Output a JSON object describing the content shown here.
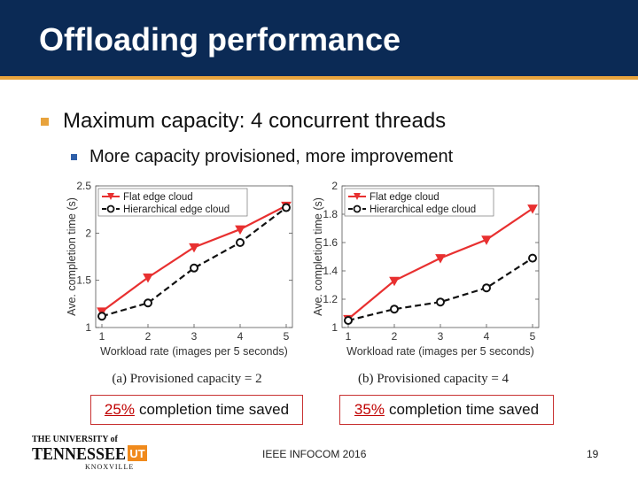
{
  "slide": {
    "title": "Offloading performance",
    "bullet_level1": "Maximum capacity: 4 concurrent threads",
    "bullet_level2": "More capacity provisioned, more improvement",
    "callout_a_pct": "25%",
    "callout_a_text": "completion time saved",
    "callout_b_pct": "35%",
    "callout_b_text": "completion time saved",
    "footer": "IEEE INFOCOM 2016",
    "page_number": "19",
    "logo_line1": "THE UNIVERSITY of",
    "logo_line2": "TENNESSEE",
    "logo_mark": "UT",
    "logo_line3": "KNOXVILLE"
  },
  "colors": {
    "title_bar": "#0b2a55",
    "accent": "#e8a33c",
    "flat_series": "#e83030",
    "hier_series": "#111111",
    "logo_orange": "#f08a1c"
  },
  "chart_data": [
    {
      "type": "line",
      "subtitle": "(a) Provisioned capacity = 2",
      "xlabel": "Workload rate (images per 5 seconds)",
      "ylabel": "Ave. completion time (s)",
      "x": [
        1,
        2,
        3,
        4,
        5
      ],
      "xticks": [
        "1",
        "2",
        "3",
        "4",
        "5"
      ],
      "ylim": [
        1,
        2.5
      ],
      "yticks": [
        "1",
        "1.5",
        "2",
        "2.5"
      ],
      "yticks_values": [
        1,
        1.5,
        2,
        2.5
      ],
      "grid": false,
      "legend": "top-left",
      "series": [
        {
          "name": "Flat edge cloud",
          "values": [
            1.17,
            1.53,
            1.85,
            2.04,
            2.29
          ]
        },
        {
          "name": "Hierarchical edge cloud",
          "values": [
            1.12,
            1.26,
            1.63,
            1.9,
            2.27
          ]
        }
      ]
    },
    {
      "type": "line",
      "subtitle": "(b) Provisioned capacity = 4",
      "xlabel": "Workload rate (images per 5 seconds)",
      "ylabel": "Ave. completion time (s)",
      "x": [
        1,
        2,
        3,
        4,
        5
      ],
      "xticks": [
        "1",
        "2",
        "3",
        "4",
        "5"
      ],
      "ylim": [
        1,
        2
      ],
      "yticks": [
        "1",
        "1.2",
        "1.4",
        "1.6",
        "1.8",
        "2"
      ],
      "yticks_values": [
        1,
        1.2,
        1.4,
        1.6,
        1.8,
        2
      ],
      "grid": false,
      "legend": "top-left",
      "series": [
        {
          "name": "Flat edge cloud",
          "values": [
            1.06,
            1.33,
            1.49,
            1.62,
            1.84
          ]
        },
        {
          "name": "Hierarchical edge cloud",
          "values": [
            1.05,
            1.13,
            1.18,
            1.28,
            1.49
          ]
        }
      ]
    }
  ]
}
